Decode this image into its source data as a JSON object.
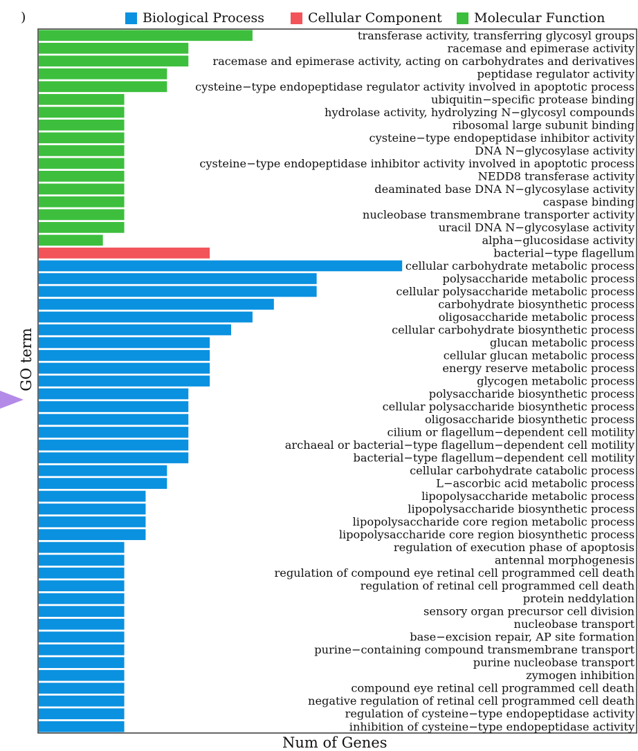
{
  "chart_data": {
    "type": "bar",
    "orientation": "horizontal",
    "panel_label": ")",
    "xlabel": "Num of Genes",
    "ylabel": "GO term",
    "xlim": [
      0,
      28
    ],
    "legend": [
      {
        "name": "Biological Process",
        "color": "#0a91e0"
      },
      {
        "name": "Cellular Component",
        "color": "#f25459"
      },
      {
        "name": "Molecular Function",
        "color": "#3dbf3d"
      }
    ],
    "bars": [
      {
        "label": "transferase activity, transferring glycosyl groups",
        "value": 10,
        "category": "Molecular Function"
      },
      {
        "label": "racemase and epimerase activity",
        "value": 7,
        "category": "Molecular Function"
      },
      {
        "label": "racemase and epimerase activity, acting on carbohydrates and derivatives",
        "value": 7,
        "category": "Molecular Function"
      },
      {
        "label": "peptidase regulator activity",
        "value": 6,
        "category": "Molecular Function"
      },
      {
        "label": "cysteine−type endopeptidase regulator activity involved in apoptotic process",
        "value": 6,
        "category": "Molecular Function"
      },
      {
        "label": "ubiquitin−specific protease binding",
        "value": 4,
        "category": "Molecular Function"
      },
      {
        "label": "hydrolase activity, hydrolyzing N−glycosyl compounds",
        "value": 4,
        "category": "Molecular Function"
      },
      {
        "label": "ribosomal large subunit binding",
        "value": 4,
        "category": "Molecular Function"
      },
      {
        "label": "cysteine−type endopeptidase inhibitor activity",
        "value": 4,
        "category": "Molecular Function"
      },
      {
        "label": "DNA N−glycosylase activity",
        "value": 4,
        "category": "Molecular Function"
      },
      {
        "label": "cysteine−type endopeptidase inhibitor activity involved in apoptotic process",
        "value": 4,
        "category": "Molecular Function"
      },
      {
        "label": "NEDD8 transferase activity",
        "value": 4,
        "category": "Molecular Function"
      },
      {
        "label": "deaminated base DNA N−glycosylase activity",
        "value": 4,
        "category": "Molecular Function"
      },
      {
        "label": "caspase binding",
        "value": 4,
        "category": "Molecular Function"
      },
      {
        "label": "nucleobase transmembrane transporter activity",
        "value": 4,
        "category": "Molecular Function"
      },
      {
        "label": "uracil DNA N−glycosylase activity",
        "value": 4,
        "category": "Molecular Function"
      },
      {
        "label": "alpha−glucosidase activity",
        "value": 3,
        "category": "Molecular Function"
      },
      {
        "label": "bacterial−type flagellum",
        "value": 8,
        "category": "Cellular Component"
      },
      {
        "label": "cellular carbohydrate metabolic process",
        "value": 17,
        "category": "Biological Process"
      },
      {
        "label": "polysaccharide metabolic process",
        "value": 13,
        "category": "Biological Process"
      },
      {
        "label": "cellular polysaccharide metabolic process",
        "value": 13,
        "category": "Biological Process"
      },
      {
        "label": "carbohydrate biosynthetic process",
        "value": 11,
        "category": "Biological Process"
      },
      {
        "label": "oligosaccharide metabolic process",
        "value": 10,
        "category": "Biological Process"
      },
      {
        "label": "cellular carbohydrate biosynthetic process",
        "value": 9,
        "category": "Biological Process"
      },
      {
        "label": "glucan metabolic process",
        "value": 8,
        "category": "Biological Process"
      },
      {
        "label": "cellular glucan metabolic process",
        "value": 8,
        "category": "Biological Process"
      },
      {
        "label": "energy reserve metabolic process",
        "value": 8,
        "category": "Biological Process"
      },
      {
        "label": "glycogen metabolic process",
        "value": 8,
        "category": "Biological Process"
      },
      {
        "label": "polysaccharide biosynthetic process",
        "value": 7,
        "category": "Biological Process"
      },
      {
        "label": "cellular polysaccharide biosynthetic process",
        "value": 7,
        "category": "Biological Process"
      },
      {
        "label": "oligosaccharide biosynthetic process",
        "value": 7,
        "category": "Biological Process"
      },
      {
        "label": "cilium or flagellum−dependent cell motility",
        "value": 7,
        "category": "Biological Process"
      },
      {
        "label": "archaeal or bacterial−type flagellum−dependent cell motility",
        "value": 7,
        "category": "Biological Process"
      },
      {
        "label": "bacterial−type flagellum−dependent cell motility",
        "value": 7,
        "category": "Biological Process"
      },
      {
        "label": "cellular carbohydrate catabolic process",
        "value": 6,
        "category": "Biological Process"
      },
      {
        "label": "L−ascorbic acid metabolic process",
        "value": 6,
        "category": "Biological Process"
      },
      {
        "label": "lipopolysaccharide metabolic process",
        "value": 5,
        "category": "Biological Process"
      },
      {
        "label": "lipopolysaccharide biosynthetic process",
        "value": 5,
        "category": "Biological Process"
      },
      {
        "label": "lipopolysaccharide core region metabolic process",
        "value": 5,
        "category": "Biological Process"
      },
      {
        "label": "lipopolysaccharide core region biosynthetic process",
        "value": 5,
        "category": "Biological Process"
      },
      {
        "label": "regulation of execution phase of apoptosis",
        "value": 4,
        "category": "Biological Process"
      },
      {
        "label": "antennal morphogenesis",
        "value": 4,
        "category": "Biological Process"
      },
      {
        "label": "regulation of compound eye retinal cell programmed cell death",
        "value": 4,
        "category": "Biological Process"
      },
      {
        "label": "regulation of retinal cell programmed cell death",
        "value": 4,
        "category": "Biological Process"
      },
      {
        "label": "protein neddylation",
        "value": 4,
        "category": "Biological Process"
      },
      {
        "label": "sensory organ precursor cell division",
        "value": 4,
        "category": "Biological Process"
      },
      {
        "label": "nucleobase transport",
        "value": 4,
        "category": "Biological Process"
      },
      {
        "label": "base−excision repair, AP site formation",
        "value": 4,
        "category": "Biological Process"
      },
      {
        "label": "purine−containing compound transmembrane transport",
        "value": 4,
        "category": "Biological Process"
      },
      {
        "label": "purine nucleobase transport",
        "value": 4,
        "category": "Biological Process"
      },
      {
        "label": "zymogen inhibition",
        "value": 4,
        "category": "Biological Process"
      },
      {
        "label": "compound eye retinal cell programmed cell death",
        "value": 4,
        "category": "Biological Process"
      },
      {
        "label": "negative regulation of retinal cell programmed cell death",
        "value": 4,
        "category": "Biological Process"
      },
      {
        "label": "regulation of cysteine−type endopeptidase activity",
        "value": 4,
        "category": "Biological Process"
      },
      {
        "label": "inhibition of cysteine−type endopeptidase activity",
        "value": 4,
        "category": "Biological Process"
      }
    ]
  }
}
